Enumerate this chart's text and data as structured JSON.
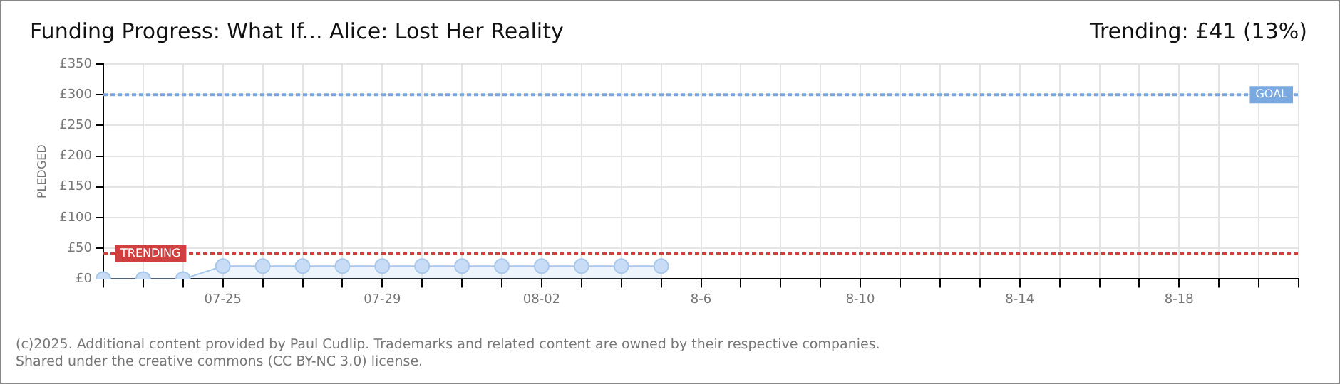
{
  "chart_data": {
    "type": "area",
    "title": "Funding Progress: What If... Alice: Lost Her Reality",
    "ylabel": "PLEDGED",
    "categories": [
      null,
      null,
      null,
      "07-25",
      null,
      null,
      null,
      "07-29",
      null,
      null,
      null,
      "08-02",
      null,
      null,
      null,
      "8-6",
      null,
      null,
      null,
      "8-10",
      null,
      null,
      null,
      "8-14",
      null,
      null,
      null,
      "8-18",
      null,
      null,
      null
    ],
    "series": [
      {
        "color": "#a8c8ec",
        "values": [
          0,
          0,
          0,
          21,
          21,
          21,
          21,
          21,
          21,
          21,
          21,
          21,
          21,
          21,
          21,
          null,
          null,
          null,
          null,
          null,
          null,
          null,
          null,
          null,
          null,
          null,
          null,
          null,
          null,
          null,
          null
        ]
      }
    ],
    "ylim": [
      0,
      350
    ],
    "yticks": [
      {
        "value": 0,
        "label": "£0"
      },
      {
        "value": 50,
        "label": "£50"
      },
      {
        "value": 100,
        "label": "£100"
      },
      {
        "value": 150,
        "label": "£150"
      },
      {
        "value": 200,
        "label": "£200"
      },
      {
        "value": 250,
        "label": "£250"
      },
      {
        "value": 300,
        "label": "£300"
      },
      {
        "value": 350,
        "label": "£350"
      }
    ],
    "ref_lines": [
      {
        "axis": "y",
        "value": 300,
        "label": "GOAL",
        "color": "#7aa8e0",
        "line_style": "dotted"
      },
      {
        "axis": "y",
        "value": 41,
        "label": "TRENDING",
        "color": "#d04040",
        "line_style": "dotted"
      }
    ],
    "annotations": [
      "Trending: £41 (13%)",
      "(c)2025. Additional content provided by Paul Cudlip. Trademarks and related content are owned by their respective companies.",
      "Shared under the creative commons (CC BY-NC 3.0) license."
    ],
    "grid": true,
    "legend": false,
    "marker": "circle",
    "line_style": "solid"
  }
}
